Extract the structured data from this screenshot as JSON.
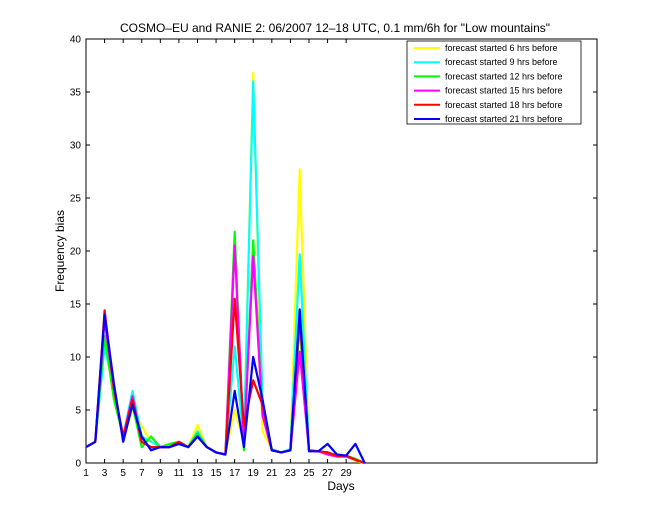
{
  "chart_data": {
    "type": "line",
    "title": "COSMO–EU and RANIE 2: 06/2007 12–18 UTC, 0.1 mm/6h for \"Low mountains\"",
    "xlabel": "Days",
    "ylabel": "Frequency bias",
    "xlim": [
      1,
      56
    ],
    "ylim": [
      0,
      40
    ],
    "x_ticks": [
      1,
      3,
      5,
      7,
      9,
      11,
      13,
      15,
      17,
      19,
      21,
      23,
      25,
      27,
      29
    ],
    "y_ticks": [
      0,
      5,
      10,
      15,
      20,
      25,
      30,
      35,
      40
    ],
    "grid": false,
    "legend_position": "top-right",
    "x": [
      1,
      2,
      3,
      4,
      5,
      6,
      7,
      8,
      9,
      10,
      11,
      12,
      13,
      14,
      15,
      16,
      17,
      18,
      19,
      20,
      21,
      22,
      23,
      24,
      25,
      26,
      27,
      28,
      29,
      30,
      31
    ],
    "series": [
      {
        "name": "forecast started 6 hrs before",
        "color": "#ffff00",
        "values": [
          1.5,
          2.0,
          11.5,
          6.5,
          2.5,
          5.0,
          3.5,
          2.0,
          1.5,
          1.5,
          1.8,
          1.5,
          3.6,
          1.5,
          1.0,
          0.8,
          5.0,
          2.0,
          36.8,
          3.0,
          1.3,
          1.0,
          1.3,
          27.7,
          1.2,
          1.1,
          1.0,
          0.6,
          0.7,
          0.2,
          0.0
        ]
      },
      {
        "name": "forecast started 9 hrs before",
        "color": "#00ffff",
        "values": [
          1.5,
          2.0,
          11.0,
          7.0,
          2.5,
          6.8,
          2.5,
          2.0,
          1.5,
          1.6,
          1.8,
          1.5,
          3.0,
          1.5,
          1.0,
          0.8,
          11.0,
          2.0,
          36.0,
          6.0,
          1.2,
          1.0,
          1.3,
          19.7,
          1.2,
          1.1,
          1.0,
          0.7,
          0.7,
          0.3,
          0.0
        ]
      },
      {
        "name": "forecast started 12 hrs before",
        "color": "#00ff00",
        "values": [
          1.5,
          2.0,
          12.0,
          6.0,
          2.5,
          5.5,
          1.5,
          2.5,
          1.5,
          1.8,
          2.0,
          1.5,
          2.8,
          1.5,
          1.0,
          0.8,
          21.8,
          1.2,
          21.0,
          5.0,
          1.3,
          1.0,
          1.2,
          13.0,
          1.2,
          1.1,
          1.0,
          0.7,
          0.7,
          0.4,
          0.0
        ]
      },
      {
        "name": "forecast started 15 hrs before",
        "color": "#ff00ff",
        "values": [
          1.5,
          2.0,
          13.5,
          7.0,
          2.5,
          6.3,
          2.0,
          1.5,
          1.5,
          1.5,
          2.0,
          1.5,
          2.5,
          1.5,
          1.0,
          0.8,
          20.5,
          2.0,
          19.5,
          4.5,
          1.2,
          1.0,
          1.2,
          10.5,
          1.2,
          1.1,
          0.8,
          0.6,
          0.6,
          0.3,
          0.0
        ]
      },
      {
        "name": "forecast started 18 hrs before",
        "color": "#ff0000",
        "values": [
          1.5,
          2.0,
          14.4,
          7.0,
          2.5,
          6.0,
          2.0,
          1.5,
          1.5,
          1.5,
          2.0,
          1.5,
          2.5,
          1.5,
          1.0,
          0.8,
          15.5,
          3.5,
          7.8,
          5.5,
          1.2,
          1.0,
          1.2,
          13.8,
          1.2,
          1.1,
          1.0,
          0.7,
          0.7,
          0.3,
          0.0
        ]
      },
      {
        "name": "forecast started 21 hrs before",
        "color": "#0000ff",
        "values": [
          1.5,
          2.0,
          14.0,
          7.5,
          2.0,
          5.5,
          2.5,
          1.2,
          1.5,
          1.5,
          1.8,
          1.5,
          2.5,
          1.5,
          1.0,
          0.8,
          6.8,
          1.5,
          10.0,
          6.0,
          1.2,
          1.0,
          1.2,
          14.5,
          1.1,
          1.1,
          1.8,
          0.8,
          0.7,
          1.8,
          0.0
        ]
      }
    ]
  }
}
